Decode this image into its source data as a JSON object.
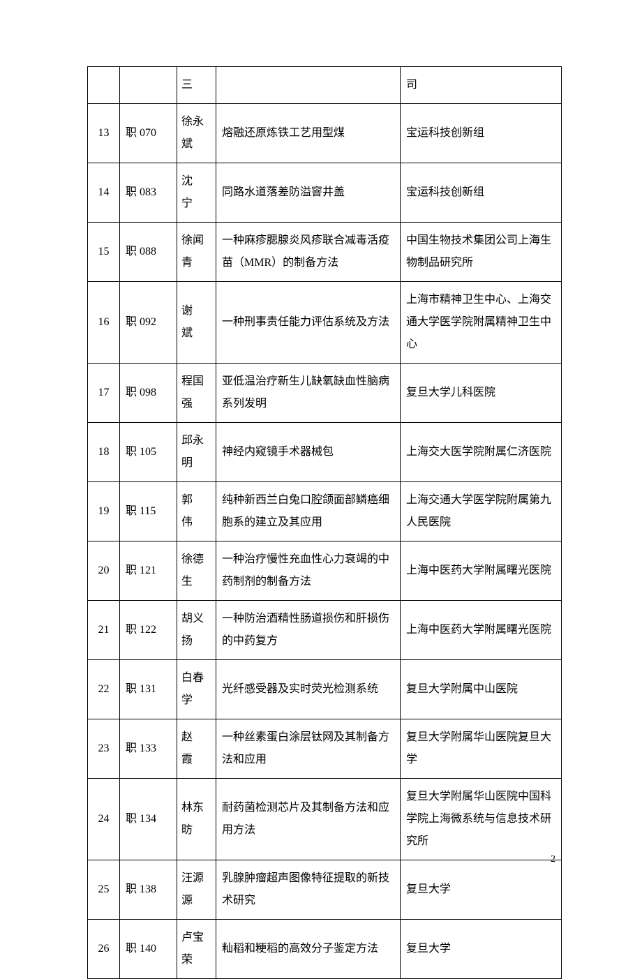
{
  "table": {
    "rows": [
      {
        "idx": "",
        "code": "",
        "name": "三",
        "title": "",
        "org": "司",
        "spaced": false
      },
      {
        "idx": "13",
        "code": "职 070",
        "name": "徐永斌",
        "title": "熔融还原炼铁工艺用型煤",
        "org": "宝运科技创新组",
        "spaced": false
      },
      {
        "idx": "14",
        "code": "职 083",
        "name": "沈　宁",
        "title": "同路水道落差防溢窨井盖",
        "org": "宝运科技创新组",
        "spaced": false
      },
      {
        "idx": "15",
        "code": "职 088",
        "name": "徐闻青",
        "title": "一种麻疹腮腺炎风疹联合减毒活疫苗（MMR）的制备方法",
        "org": "中国生物技术集团公司上海生物制品研究所",
        "spaced": false
      },
      {
        "idx": "16",
        "code": "职 092",
        "name": "谢　斌",
        "title": "一种刑事责任能力评估系统及方法",
        "org": "上海市精神卫生中心、上海交通大学医学院附属精神卫生中心",
        "spaced": false
      },
      {
        "idx": "17",
        "code": "职 098",
        "name": "程国强",
        "title": "亚低温治疗新生儿缺氧缺血性脑病系列发明",
        "org": "复旦大学儿科医院",
        "spaced": false
      },
      {
        "idx": "18",
        "code": "职 105",
        "name": "邱永明",
        "title": "神经内窥镜手术器械包",
        "org": "上海交大医学院附属仁济医院",
        "spaced": false
      },
      {
        "idx": "19",
        "code": "职 115",
        "name": "郭　伟",
        "title": "纯种新西兰白兔口腔颌面部鳞癌细胞系的建立及其应用",
        "org": "上海交通大学医学院附属第九人民医院",
        "spaced": false
      },
      {
        "idx": "20",
        "code": "职 121",
        "name": "徐德生",
        "title": "一种治疗慢性充血性心力衰竭的中药制剂的制备方法",
        "org": "上海中医药大学附属曙光医院",
        "spaced": false
      },
      {
        "idx": "21",
        "code": "职 122",
        "name": "胡义扬",
        "title": "一种防治酒精性肠道损伤和肝损伤的中药复方",
        "org": "上海中医药大学附属曙光医院",
        "spaced": false
      },
      {
        "idx": "22",
        "code": "职 131",
        "name": "白春学",
        "title": "光纤感受器及实时荧光检测系统",
        "org": "复旦大学附属中山医院",
        "spaced": false
      },
      {
        "idx": "23",
        "code": "职 133",
        "name": "赵　霞",
        "title": "一种丝素蛋白涂层钛网及其制备方法和应用",
        "org": "复旦大学附属华山医院复旦大学",
        "spaced": false
      },
      {
        "idx": "24",
        "code": "职 134",
        "name": "林东昉",
        "title": "耐药菌检测芯片及其制备方法和应用方法",
        "org": "复旦大学附属华山医院中国科学院上海微系统与信息技术研究所",
        "spaced": false
      },
      {
        "idx": "25",
        "code": "职 138",
        "name": "汪源源",
        "title": "乳腺肿瘤超声图像特征提取的新技术研究",
        "org": "复旦大学",
        "spaced": false
      },
      {
        "idx": "26",
        "code": "职 140",
        "name": "卢宝荣",
        "title": "籼稻和粳稻的高效分子鉴定方法",
        "org": "复旦大学",
        "spaced": false
      }
    ]
  },
  "page_number": "2"
}
